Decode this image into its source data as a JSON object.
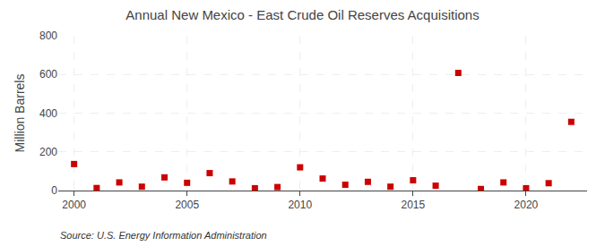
{
  "chart_data": {
    "type": "scatter",
    "title": "Annual New Mexico - East Crude Oil Reserves Acquisitions",
    "y_label": "Million Barrels",
    "annotations": [
      "Source: U.S. Energy Information Administration"
    ],
    "x": [
      2000,
      2001,
      2002,
      2003,
      2004,
      2005,
      2006,
      2007,
      2008,
      2009,
      2010,
      2011,
      2012,
      2013,
      2014,
      2015,
      2016,
      2017,
      2018,
      2019,
      2020,
      2021,
      2022
    ],
    "values": [
      137,
      13,
      42,
      20,
      68,
      40,
      90,
      47,
      12,
      18,
      120,
      62,
      30,
      45,
      20,
      53,
      25,
      608,
      8,
      42,
      12,
      38,
      355
    ],
    "color": "#cc0000",
    "marker": "square",
    "xlim": [
      1999.3,
      2022.7
    ],
    "xticks": [
      2000,
      2005,
      2010,
      2015,
      2020
    ],
    "ylim": [
      0,
      800
    ],
    "yticks": [
      0,
      200,
      400,
      600,
      800
    ],
    "grid": true
  }
}
